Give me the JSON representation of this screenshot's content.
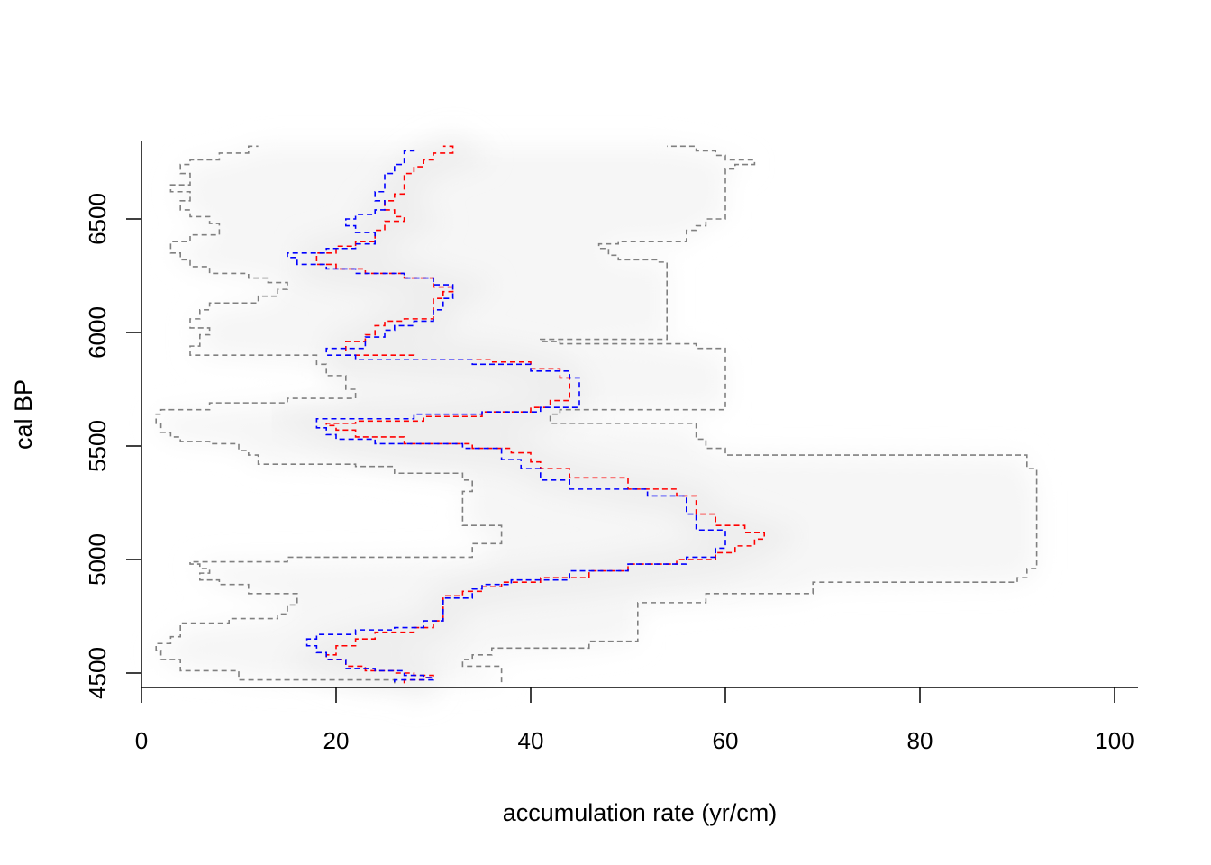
{
  "chart_data": {
    "type": "line",
    "orientation": "vertical",
    "xlabel": "accumulation rate (yr/cm)",
    "ylabel": "cal BP",
    "xlim": [
      0,
      102
    ],
    "ylim": [
      4440,
      6840
    ],
    "x_ticks": [
      0,
      20,
      40,
      60,
      80,
      100
    ],
    "y_ticks": [
      4500,
      5000,
      5500,
      6000,
      6500
    ],
    "grid": false,
    "legend": "none",
    "colors": {
      "lower_bound": "#808080",
      "upper_bound": "#808080",
      "mean": "#ff0000",
      "median": "#0000ff",
      "density": "#e8e8e8"
    },
    "line_style": "dashed",
    "series": [
      {
        "key": "lower_bound",
        "points": [
          [
            26,
            4455
          ],
          [
            10,
            4470
          ],
          [
            10,
            4500
          ],
          [
            4,
            4510
          ],
          [
            4,
            4540
          ],
          [
            2,
            4560
          ],
          [
            1.5,
            4600
          ],
          [
            3,
            4630
          ],
          [
            4,
            4660
          ],
          [
            4,
            4690
          ],
          [
            9,
            4720
          ],
          [
            14,
            4740
          ],
          [
            15,
            4760
          ],
          [
            16,
            4800
          ],
          [
            11,
            4850
          ],
          [
            8,
            4890
          ],
          [
            6,
            4910
          ],
          [
            7,
            4940
          ],
          [
            6,
            4960
          ],
          [
            5,
            4980
          ],
          [
            10,
            4990
          ],
          [
            15,
            4990
          ],
          [
            34,
            5010
          ],
          [
            37,
            5070
          ],
          [
            33,
            5150
          ],
          [
            33,
            5200
          ],
          [
            34,
            5300
          ],
          [
            33,
            5350
          ],
          [
            26,
            5380
          ],
          [
            22,
            5410
          ],
          [
            12,
            5420
          ],
          [
            12,
            5440
          ],
          [
            11,
            5460
          ],
          [
            10,
            5480
          ],
          [
            10,
            5500
          ],
          [
            7,
            5510
          ],
          [
            4,
            5520
          ],
          [
            3,
            5540
          ],
          [
            2,
            5560
          ],
          [
            1.5,
            5600
          ],
          [
            2,
            5640
          ],
          [
            7,
            5660
          ],
          [
            15,
            5690
          ],
          [
            22,
            5710
          ],
          [
            21,
            5750
          ],
          [
            19,
            5810
          ],
          [
            18,
            5860
          ],
          [
            5,
            5900
          ],
          [
            6,
            5940
          ],
          [
            7,
            5990
          ],
          [
            5,
            6020
          ],
          [
            6,
            6060
          ],
          [
            7,
            6100
          ],
          [
            12,
            6130
          ],
          [
            14,
            6160
          ],
          [
            15,
            6190
          ],
          [
            13,
            6220
          ],
          [
            11,
            6240
          ],
          [
            7,
            6260
          ],
          [
            5,
            6290
          ],
          [
            4,
            6320
          ],
          [
            3,
            6350
          ],
          [
            5,
            6400
          ],
          [
            8,
            6430
          ],
          [
            7,
            6480
          ],
          [
            5,
            6510
          ],
          [
            4,
            6540
          ],
          [
            5,
            6580
          ],
          [
            3,
            6620
          ],
          [
            5,
            6650
          ],
          [
            4,
            6700
          ],
          [
            5,
            6740
          ],
          [
            8,
            6760
          ],
          [
            11,
            6790
          ],
          [
            12,
            6820
          ]
        ]
      },
      {
        "key": "upper_bound",
        "points": [
          [
            37,
            4460
          ],
          [
            37,
            4490
          ],
          [
            33,
            4530
          ],
          [
            34,
            4560
          ],
          [
            36,
            4580
          ],
          [
            46,
            4610
          ],
          [
            51,
            4640
          ],
          [
            51,
            4700
          ],
          [
            51,
            4750
          ],
          [
            51,
            4790
          ],
          [
            58,
            4810
          ],
          [
            69,
            4850
          ],
          [
            69,
            4890
          ],
          [
            90,
            4900
          ],
          [
            91,
            4920
          ],
          [
            92,
            4960
          ],
          [
            92,
            5020
          ],
          [
            92,
            5150
          ],
          [
            92,
            5300
          ],
          [
            91,
            5400
          ],
          [
            91,
            5450
          ],
          [
            60,
            5460
          ],
          [
            58,
            5490
          ],
          [
            57,
            5530
          ],
          [
            57,
            5580
          ],
          [
            42,
            5600
          ],
          [
            43,
            5640
          ],
          [
            60,
            5660
          ],
          [
            60,
            5750
          ],
          [
            60,
            5850
          ],
          [
            60,
            5890
          ],
          [
            57,
            5930
          ],
          [
            43,
            5950
          ],
          [
            41,
            5960
          ],
          [
            54,
            5970
          ],
          [
            54,
            6050
          ],
          [
            54,
            6150
          ],
          [
            54,
            6250
          ],
          [
            54,
            6300
          ],
          [
            53,
            6310
          ],
          [
            49,
            6320
          ],
          [
            48,
            6340
          ],
          [
            47,
            6370
          ],
          [
            49,
            6390
          ],
          [
            56,
            6400
          ],
          [
            57,
            6450
          ],
          [
            58,
            6470
          ],
          [
            60,
            6500
          ],
          [
            60,
            6600
          ],
          [
            60,
            6700
          ],
          [
            61,
            6720
          ],
          [
            63,
            6740
          ],
          [
            60,
            6760
          ],
          [
            59,
            6780
          ],
          [
            57,
            6800
          ],
          [
            54,
            6820
          ]
        ]
      },
      {
        "key": "mean",
        "points": [
          [
            27,
            4455
          ],
          [
            29,
            4470
          ],
          [
            30,
            4480
          ],
          [
            28,
            4490
          ],
          [
            26,
            4500
          ],
          [
            23,
            4510
          ],
          [
            21,
            4530
          ],
          [
            19,
            4560
          ],
          [
            20,
            4580
          ],
          [
            20,
            4600
          ],
          [
            22,
            4620
          ],
          [
            24,
            4650
          ],
          [
            28,
            4680
          ],
          [
            30,
            4700
          ],
          [
            31,
            4730
          ],
          [
            31,
            4800
          ],
          [
            33,
            4840
          ],
          [
            35,
            4860
          ],
          [
            37,
            4880
          ],
          [
            41,
            4900
          ],
          [
            46,
            4920
          ],
          [
            50,
            4950
          ],
          [
            55,
            4980
          ],
          [
            59,
            5000
          ],
          [
            61,
            5030
          ],
          [
            63,
            5060
          ],
          [
            64,
            5090
          ],
          [
            62,
            5120
          ],
          [
            59,
            5150
          ],
          [
            57,
            5200
          ],
          [
            57,
            5250
          ],
          [
            55,
            5280
          ],
          [
            50,
            5310
          ],
          [
            44,
            5360
          ],
          [
            41,
            5400
          ],
          [
            40,
            5430
          ],
          [
            38,
            5470
          ],
          [
            34,
            5490
          ],
          [
            27,
            5510
          ],
          [
            22,
            5540
          ],
          [
            20,
            5570
          ],
          [
            19,
            5590
          ],
          [
            22,
            5600
          ],
          [
            29,
            5610
          ],
          [
            35,
            5630
          ],
          [
            40,
            5650
          ],
          [
            42,
            5670
          ],
          [
            44,
            5700
          ],
          [
            44,
            5750
          ],
          [
            43,
            5800
          ],
          [
            40,
            5840
          ],
          [
            36,
            5870
          ],
          [
            28,
            5880
          ],
          [
            21,
            5900
          ],
          [
            21,
            5930
          ],
          [
            23,
            5960
          ],
          [
            24,
            5990
          ],
          [
            25,
            6030
          ],
          [
            27,
            6050
          ],
          [
            30,
            6060
          ],
          [
            30,
            6100
          ],
          [
            31,
            6150
          ],
          [
            32,
            6180
          ],
          [
            30,
            6200
          ],
          [
            27,
            6240
          ],
          [
            23,
            6260
          ],
          [
            20,
            6280
          ],
          [
            18,
            6300
          ],
          [
            18,
            6330
          ],
          [
            20,
            6350
          ],
          [
            22,
            6380
          ],
          [
            24,
            6400
          ],
          [
            25,
            6450
          ],
          [
            27,
            6490
          ],
          [
            26,
            6510
          ],
          [
            25,
            6540
          ],
          [
            26,
            6580
          ],
          [
            27,
            6610
          ],
          [
            27,
            6660
          ],
          [
            28,
            6700
          ],
          [
            29,
            6730
          ],
          [
            30,
            6760
          ],
          [
            32,
            6790
          ],
          [
            31,
            6820
          ]
        ]
      },
      {
        "key": "median",
        "points": [
          [
            26,
            4460
          ],
          [
            30,
            4470
          ],
          [
            29,
            4480
          ],
          [
            27,
            4490
          ],
          [
            24,
            4510
          ],
          [
            21,
            4520
          ],
          [
            19,
            4560
          ],
          [
            18,
            4590
          ],
          [
            17,
            4620
          ],
          [
            18,
            4650
          ],
          [
            22,
            4670
          ],
          [
            26,
            4690
          ],
          [
            29,
            4700
          ],
          [
            31,
            4730
          ],
          [
            31,
            4800
          ],
          [
            34,
            4830
          ],
          [
            35,
            4870
          ],
          [
            38,
            4890
          ],
          [
            44,
            4910
          ],
          [
            50,
            4950
          ],
          [
            56,
            4980
          ],
          [
            59,
            5010
          ],
          [
            60,
            5050
          ],
          [
            60,
            5100
          ],
          [
            57,
            5130
          ],
          [
            56,
            5200
          ],
          [
            56,
            5250
          ],
          [
            52,
            5280
          ],
          [
            44,
            5310
          ],
          [
            41,
            5350
          ],
          [
            39,
            5400
          ],
          [
            37,
            5440
          ],
          [
            33,
            5490
          ],
          [
            24,
            5510
          ],
          [
            20,
            5530
          ],
          [
            19,
            5550
          ],
          [
            18,
            5580
          ],
          [
            18,
            5610
          ],
          [
            28,
            5620
          ],
          [
            35,
            5640
          ],
          [
            41,
            5650
          ],
          [
            45,
            5670
          ],
          [
            45,
            5750
          ],
          [
            44,
            5800
          ],
          [
            40,
            5830
          ],
          [
            34,
            5860
          ],
          [
            22,
            5880
          ],
          [
            19,
            5900
          ],
          [
            23,
            5930
          ],
          [
            25,
            5980
          ],
          [
            26,
            6010
          ],
          [
            28,
            6030
          ],
          [
            30,
            6050
          ],
          [
            31,
            6100
          ],
          [
            32,
            6150
          ],
          [
            32,
            6190
          ],
          [
            30,
            6210
          ],
          [
            27,
            6240
          ],
          [
            22,
            6260
          ],
          [
            19,
            6280
          ],
          [
            16,
            6300
          ],
          [
            15,
            6330
          ],
          [
            19,
            6350
          ],
          [
            22,
            6370
          ],
          [
            24,
            6390
          ],
          [
            24,
            6420
          ],
          [
            22,
            6440
          ],
          [
            21,
            6470
          ],
          [
            22,
            6500
          ],
          [
            24,
            6520
          ],
          [
            25,
            6540
          ],
          [
            24,
            6580
          ],
          [
            25,
            6620
          ],
          [
            25,
            6660
          ],
          [
            26,
            6700
          ],
          [
            27,
            6740
          ],
          [
            27,
            6780
          ],
          [
            28,
            6800
          ],
          [
            28,
            6820
          ]
        ]
      }
    ]
  }
}
